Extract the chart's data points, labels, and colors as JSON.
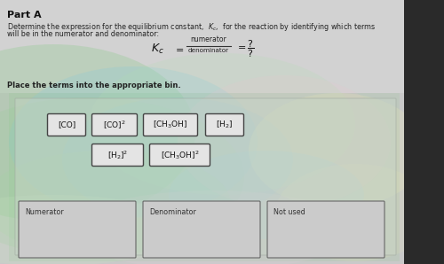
{
  "outer_bg": "#3a3a3a",
  "panel_bg": "#c8c8c8",
  "content_bg": "#d4d4d4",
  "swirl_area_bg": "#c0ccc0",
  "title": "Part A",
  "desc1": "Determine the expression for the equilibrium constant,  $K_c$,  for the reaction by identifying which terms",
  "desc2": "will be in the numerator and denominator:",
  "instruction": "Place the terms into the appropriate bin.",
  "terms_row1": [
    "[CO]",
    "[CO]$^2$",
    "[CH$_3$OH]",
    "[H$_2$]"
  ],
  "terms_row2": [
    "[H$_2$]$^2$",
    "[CH$_3$OH]$^2$"
  ],
  "bins": [
    "Numerator",
    "Denominator",
    "Not used"
  ],
  "box_bg": "#e8e8e8",
  "box_edge": "#555555",
  "bin_bg": "#d8d8d8",
  "bin_edge": "#777777",
  "text_color": "#222222",
  "title_color": "#111111"
}
